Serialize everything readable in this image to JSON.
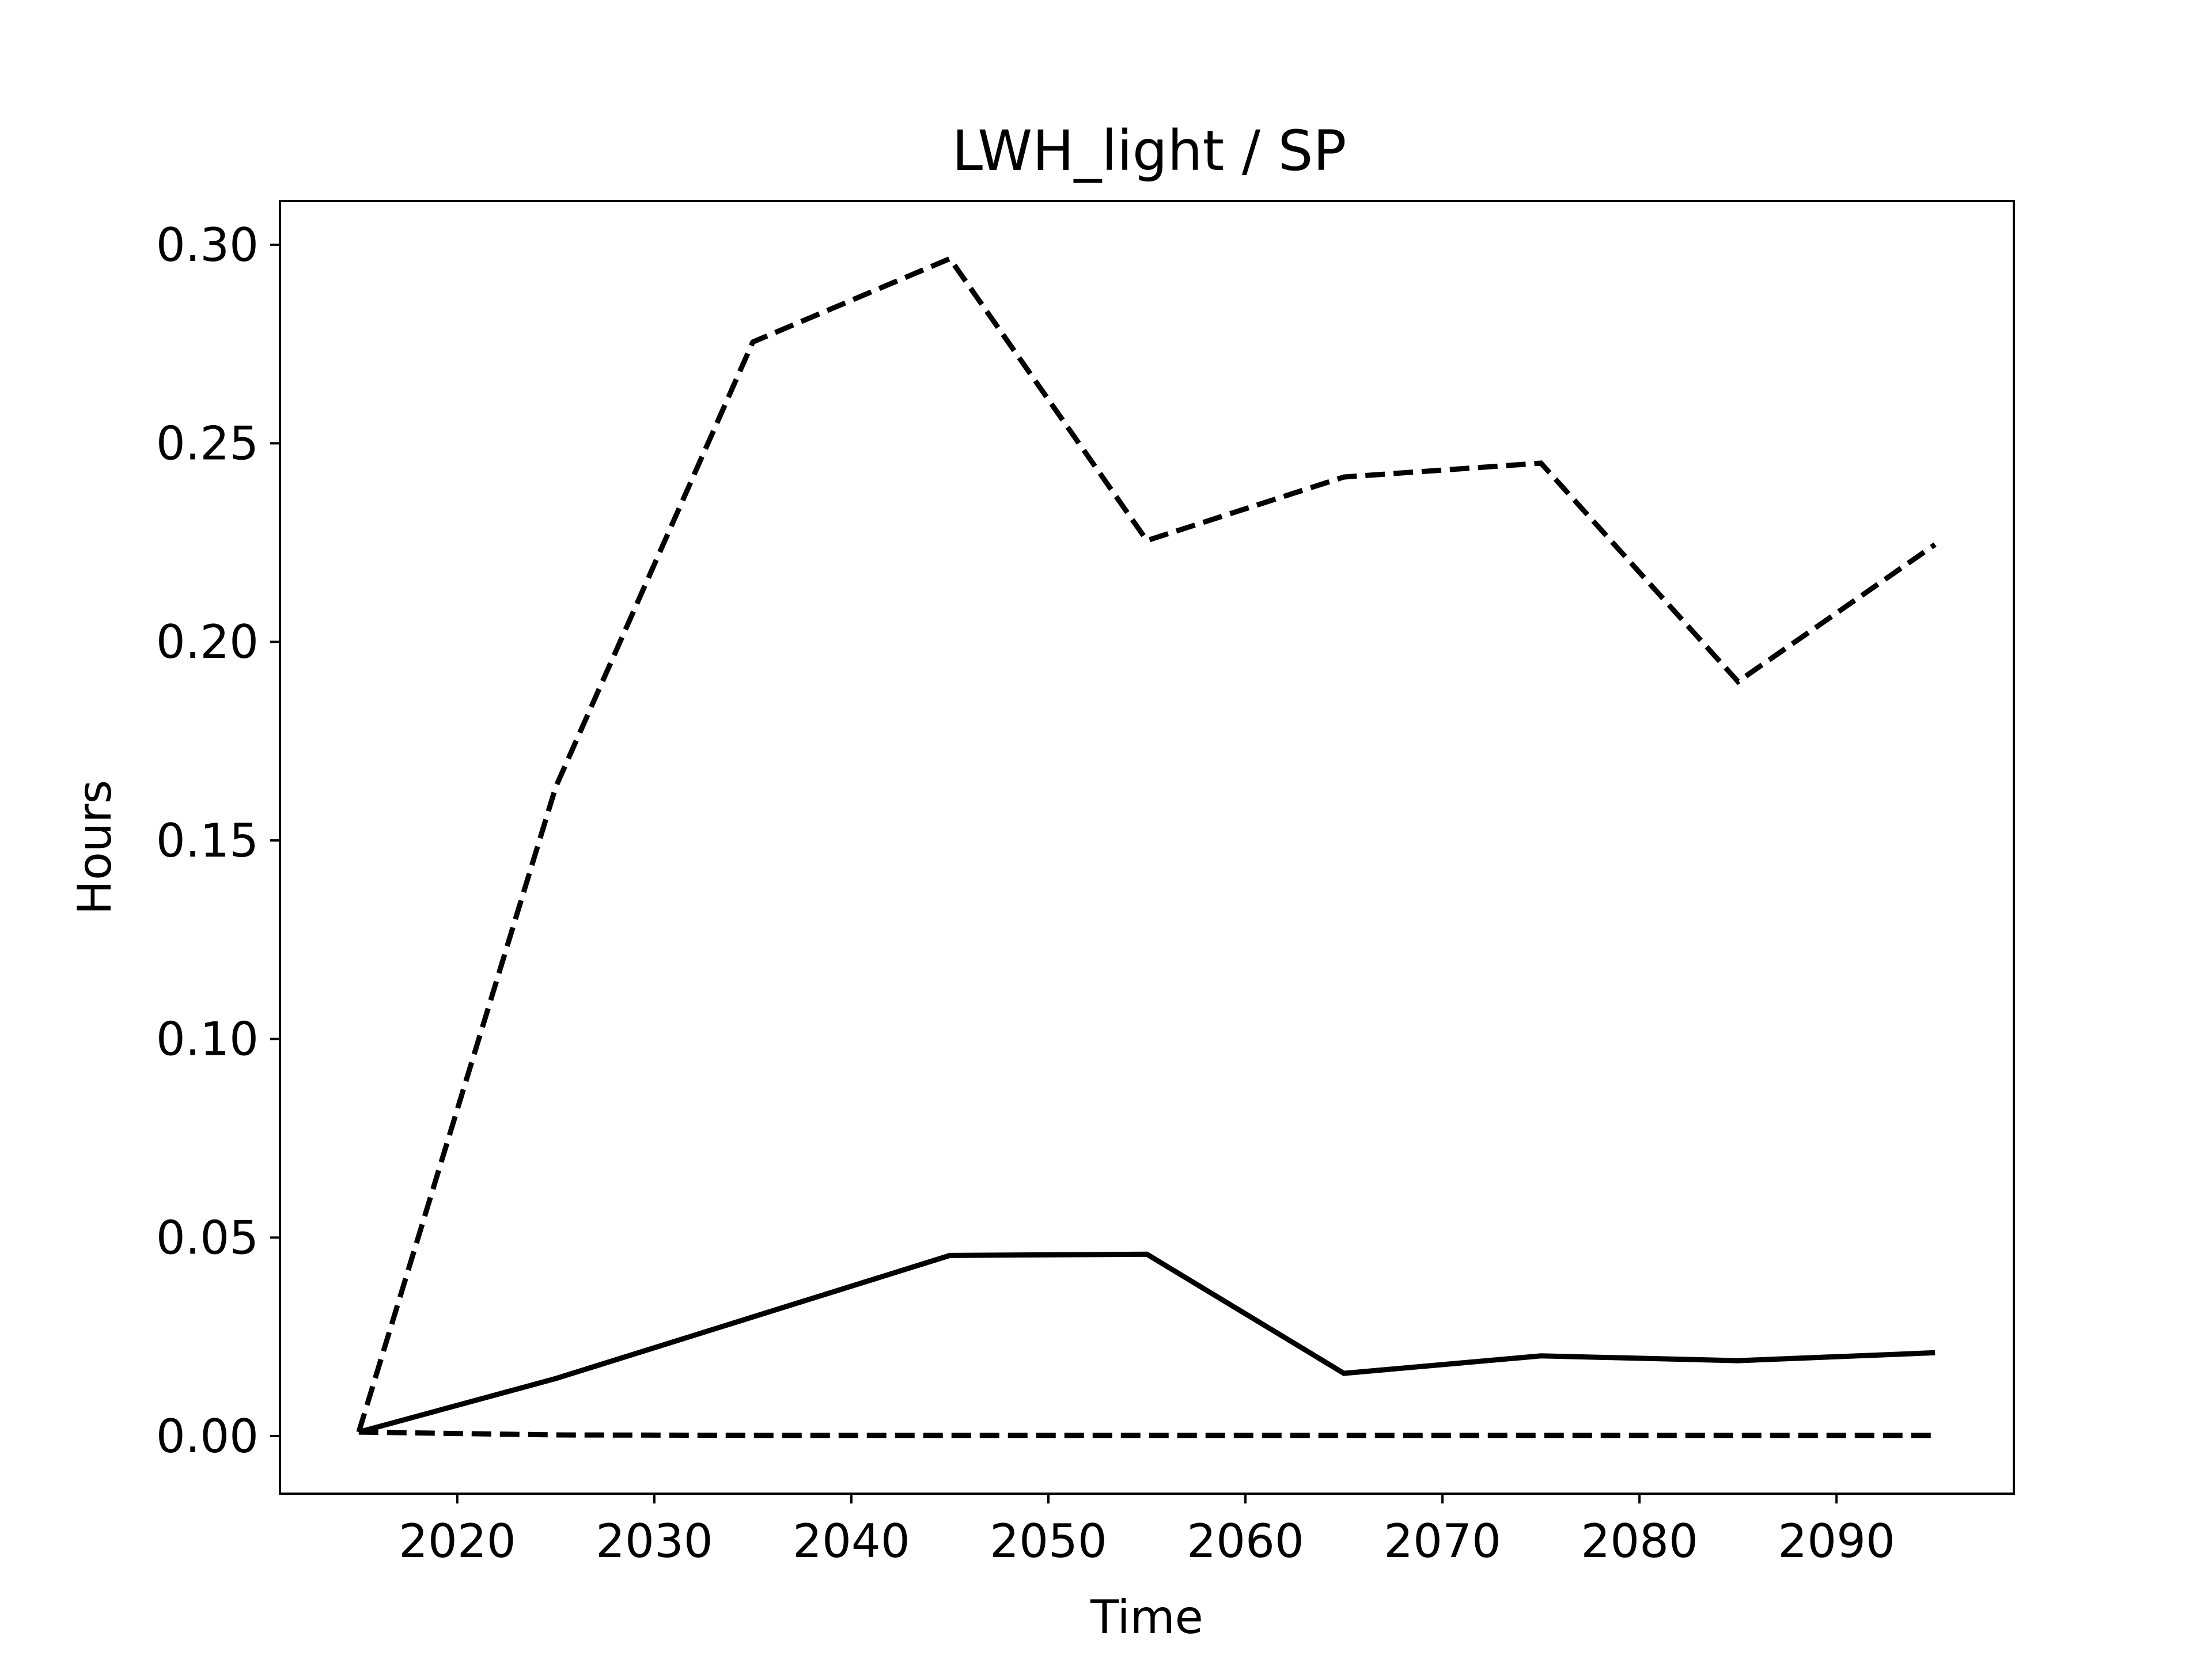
{
  "chart_data": {
    "type": "line",
    "title": "LWH_light / SP",
    "xlabel": "Time",
    "ylabel": "Hours",
    "xlim": [
      2011,
      2099
    ],
    "ylim": [
      -0.0145,
      0.311
    ],
    "xticks": [
      2020,
      2030,
      2040,
      2050,
      2060,
      2070,
      2080,
      2090
    ],
    "yticks": [
      0.0,
      0.05,
      0.1,
      0.15,
      0.2,
      0.25,
      0.3
    ],
    "ytick_labels": [
      "0.00",
      "0.05",
      "0.10",
      "0.15",
      "0.20",
      "0.25",
      "0.30"
    ],
    "grid": false,
    "x": [
      2015,
      2025,
      2035,
      2045,
      2055,
      2065,
      2075,
      2085,
      2095
    ],
    "series": [
      {
        "style": "solid",
        "color": "#000000",
        "values": [
          0.001,
          0.0145,
          0.03,
          0.0455,
          0.0458,
          0.0158,
          0.0202,
          0.019,
          0.021
        ]
      },
      {
        "style": "dashed",
        "color": "#000000",
        "values": [
          0.001,
          0.1635,
          0.2755,
          0.2965,
          0.2255,
          0.2415,
          0.245,
          0.19,
          0.2245
        ]
      },
      {
        "style": "dashed",
        "color": "#000000",
        "values": [
          0.001,
          0.0003,
          0.0002,
          0.0002,
          0.0002,
          0.0002,
          0.0002,
          0.0002,
          0.0002
        ]
      }
    ]
  }
}
